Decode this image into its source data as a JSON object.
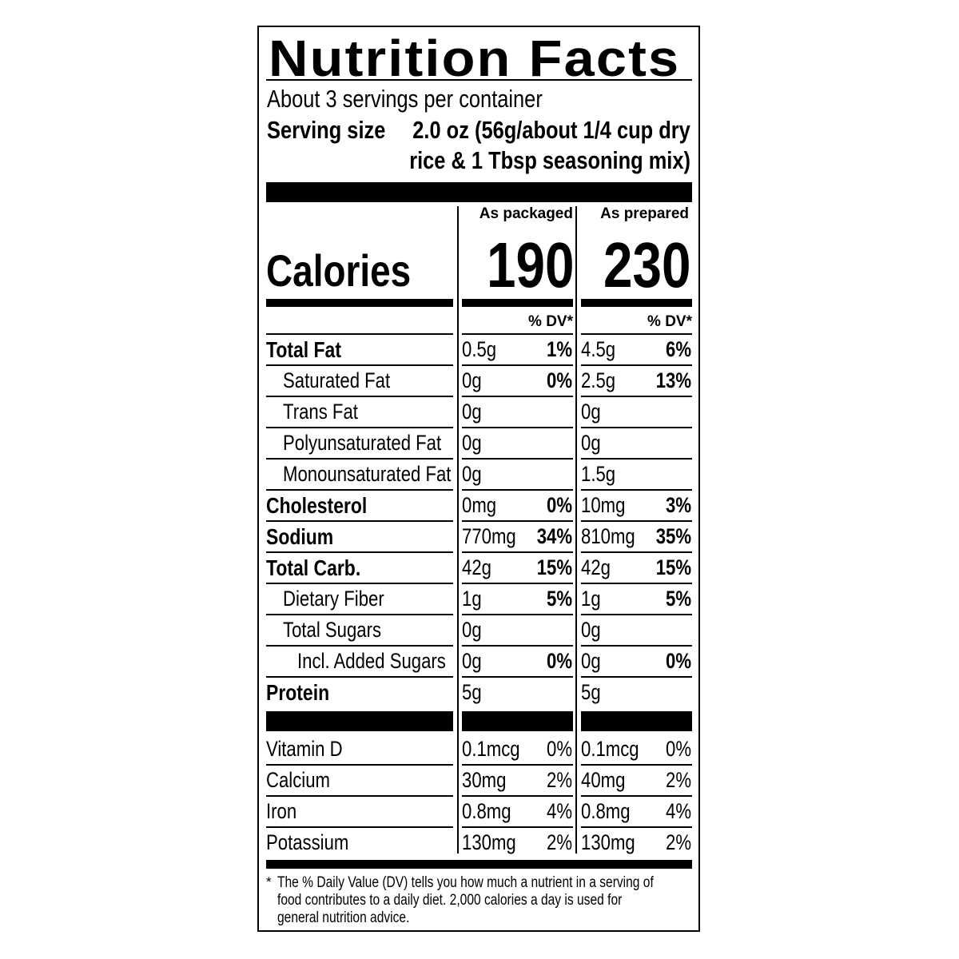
{
  "title": "Nutrition Facts",
  "servings_per_container": "About 3 servings per container",
  "serving_size_label": "Serving size",
  "serving_size_line1": "2.0 oz (56g/about 1/4 cup dry",
  "serving_size_line2": "rice & 1 Tbsp seasoning mix)",
  "columns": [
    {
      "header": "As packaged",
      "calories": "190",
      "dv_header": "% DV*"
    },
    {
      "header": "As prepared",
      "calories": "230",
      "dv_header": "% DV*"
    }
  ],
  "calories_label": "Calories",
  "nutrients": [
    {
      "label": "Total Fat",
      "bold": true,
      "indent": 0,
      "values": [
        {
          "amount": "0.5g",
          "dv": "1%"
        },
        {
          "amount": "4.5g",
          "dv": "6%"
        }
      ]
    },
    {
      "label": "Saturated Fat",
      "bold": false,
      "indent": 1,
      "values": [
        {
          "amount": "0g",
          "dv": "0%"
        },
        {
          "amount": "2.5g",
          "dv": "13%"
        }
      ]
    },
    {
      "label": "Trans Fat",
      "bold": false,
      "indent": 1,
      "values": [
        {
          "amount": "0g",
          "dv": ""
        },
        {
          "amount": "0g",
          "dv": ""
        }
      ]
    },
    {
      "label": "Polyunsaturated Fat",
      "bold": false,
      "indent": 1,
      "values": [
        {
          "amount": "0g",
          "dv": ""
        },
        {
          "amount": "0g",
          "dv": ""
        }
      ]
    },
    {
      "label": "Monounsaturated Fat",
      "bold": false,
      "indent": 1,
      "values": [
        {
          "amount": "0g",
          "dv": ""
        },
        {
          "amount": "1.5g",
          "dv": ""
        }
      ]
    },
    {
      "label": "Cholesterol",
      "bold": true,
      "indent": 0,
      "values": [
        {
          "amount": "0mg",
          "dv": "0%"
        },
        {
          "amount": "10mg",
          "dv": "3%"
        }
      ]
    },
    {
      "label": "Sodium",
      "bold": true,
      "indent": 0,
      "values": [
        {
          "amount": "770mg",
          "dv": "34%"
        },
        {
          "amount": "810mg",
          "dv": "35%"
        }
      ]
    },
    {
      "label": "Total Carb.",
      "bold": true,
      "indent": 0,
      "values": [
        {
          "amount": "42g",
          "dv": "15%"
        },
        {
          "amount": "42g",
          "dv": "15%"
        }
      ]
    },
    {
      "label": "Dietary Fiber",
      "bold": false,
      "indent": 1,
      "values": [
        {
          "amount": "1g",
          "dv": "5%"
        },
        {
          "amount": "1g",
          "dv": "5%"
        }
      ]
    },
    {
      "label": "Total Sugars",
      "bold": false,
      "indent": 1,
      "values": [
        {
          "amount": "0g",
          "dv": ""
        },
        {
          "amount": "0g",
          "dv": ""
        }
      ]
    },
    {
      "label": "Incl. Added Sugars",
      "bold": false,
      "indent": 2,
      "values": [
        {
          "amount": "0g",
          "dv": "0%"
        },
        {
          "amount": "0g",
          "dv": "0%"
        }
      ]
    },
    {
      "label": "Protein",
      "bold": true,
      "indent": 0,
      "values": [
        {
          "amount": "5g",
          "dv": ""
        },
        {
          "amount": "5g",
          "dv": ""
        }
      ]
    }
  ],
  "vitamins": [
    {
      "label": "Vitamin D",
      "values": [
        {
          "amount": "0.1mcg",
          "dv": "0%"
        },
        {
          "amount": "0.1mcg",
          "dv": "0%"
        }
      ]
    },
    {
      "label": "Calcium",
      "values": [
        {
          "amount": "30mg",
          "dv": "2%"
        },
        {
          "amount": "40mg",
          "dv": "2%"
        }
      ]
    },
    {
      "label": "Iron",
      "values": [
        {
          "amount": "0.8mg",
          "dv": "4%"
        },
        {
          "amount": "0.8mg",
          "dv": "4%"
        }
      ]
    },
    {
      "label": "Potassium",
      "values": [
        {
          "amount": "130mg",
          "dv": "2%"
        },
        {
          "amount": "130mg",
          "dv": "2%"
        }
      ]
    }
  ],
  "footnote_star": "*",
  "footnote_lines": [
    "The % Daily Value (DV) tells you how much a nutrient in a serving of",
    "food contributes to a daily diet. 2,000 calories a day is used for",
    "general nutrition advice."
  ]
}
